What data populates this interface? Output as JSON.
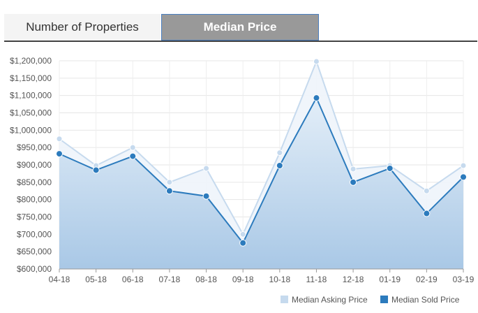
{
  "tabs": [
    {
      "label": "Number of Properties",
      "active": false
    },
    {
      "label": "Median Price",
      "active": true
    }
  ],
  "colors": {
    "asking": "#c6daee",
    "sold": "#2c7bbd",
    "active_tab_bg": "#999999",
    "inactive_tab_bg": "#f4f4f4"
  },
  "chart_data": {
    "type": "area",
    "title": "",
    "xlabel": "",
    "ylabel": "",
    "categories": [
      "04-18",
      "05-18",
      "06-18",
      "07-18",
      "08-18",
      "09-18",
      "10-18",
      "11-18",
      "12-18",
      "01-19",
      "02-19",
      "03-19"
    ],
    "ylim": [
      600000,
      1200000
    ],
    "yticks": [
      "$1,200,000",
      "$1,150,000",
      "$1,100,000",
      "$1,050,000",
      "$1,000,000",
      "$950,000",
      "$900,000",
      "$850,000",
      "$800,000",
      "$750,000",
      "$700,000",
      "$650,000",
      "$600,000"
    ],
    "ytick_values": [
      1200000,
      1150000,
      1100000,
      1050000,
      1000000,
      950000,
      900000,
      850000,
      800000,
      750000,
      700000,
      650000,
      600000
    ],
    "grid": true,
    "legend_position": "bottom-right",
    "series": [
      {
        "name": "Median Asking Price",
        "values": [
          975000,
          898000,
          950000,
          850000,
          890000,
          700000,
          935000,
          1198000,
          888000,
          898000,
          825000,
          898000
        ]
      },
      {
        "name": "Median Sold Price",
        "values": [
          932000,
          885000,
          925000,
          825000,
          810000,
          675000,
          898000,
          1093000,
          850000,
          890000,
          760000,
          865000
        ]
      }
    ]
  }
}
